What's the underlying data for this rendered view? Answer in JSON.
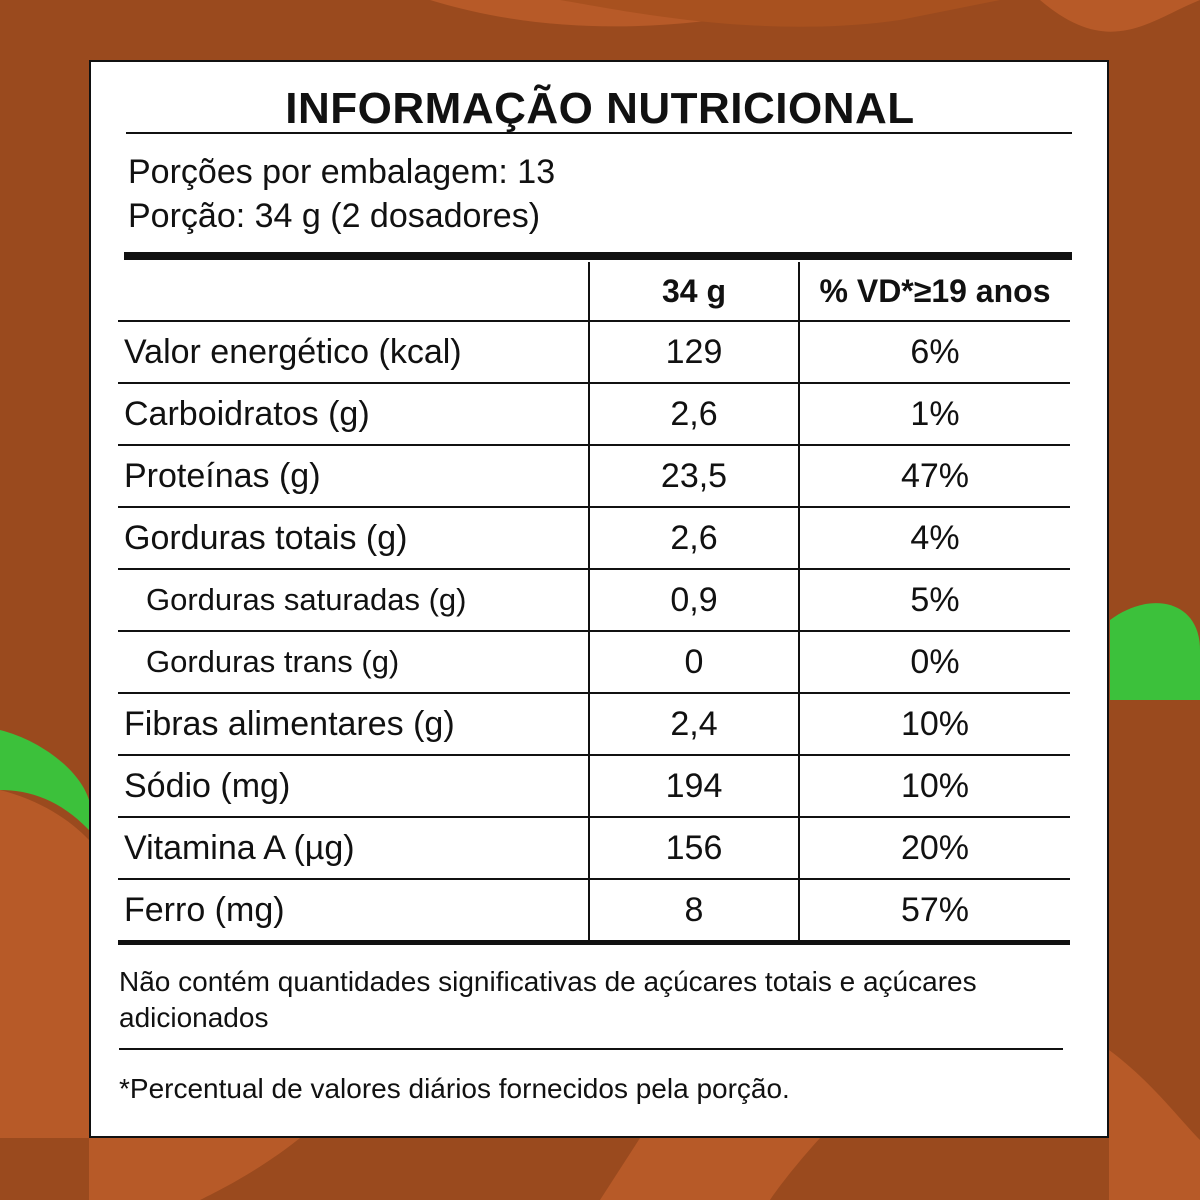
{
  "label": {
    "title": "INFORMAÇÃO NUTRICIONAL",
    "servings_per_package": "Porções por embalagem: 13",
    "serving_size": "Porção: 34 g (2 dosadores)",
    "columns": {
      "amount_header": "34 g",
      "dv_header": "% VD*≥19 anos"
    },
    "rows": [
      {
        "name": "Valor energético (kcal)",
        "amount": "129",
        "dv": "6%"
      },
      {
        "name": "Carboidratos (g)",
        "amount": "2,6",
        "dv": "1%"
      },
      {
        "name": "Proteínas (g)",
        "amount": "23,5",
        "dv": "47%"
      },
      {
        "name": "Gorduras totais (g)",
        "amount": "2,6",
        "dv": "4%"
      },
      {
        "name": "Gorduras saturadas (g)",
        "amount": "0,9",
        "dv": "5%"
      },
      {
        "name": "Gorduras trans (g)",
        "amount": "0",
        "dv": "0%"
      },
      {
        "name": "Fibras alimentares (g)",
        "amount": "2,4",
        "dv": "10%"
      },
      {
        "name": "Sódio (mg)",
        "amount": "194",
        "dv": "10%"
      },
      {
        "name": "Vitamina A (µg)",
        "amount": "156",
        "dv": "20%"
      },
      {
        "name": "Ferro (mg)",
        "amount": "8",
        "dv": "57%"
      }
    ],
    "sugar_note": "Não contém quantidades significativas de açúcares totais e açúcares adicionados",
    "footnote": "*Percentual de valores diários fornecidos pela porção."
  },
  "colors": {
    "background_brown": "#9a4a1e",
    "swirl_brown": "#b75a28",
    "accent_green": "#3cc13b"
  }
}
